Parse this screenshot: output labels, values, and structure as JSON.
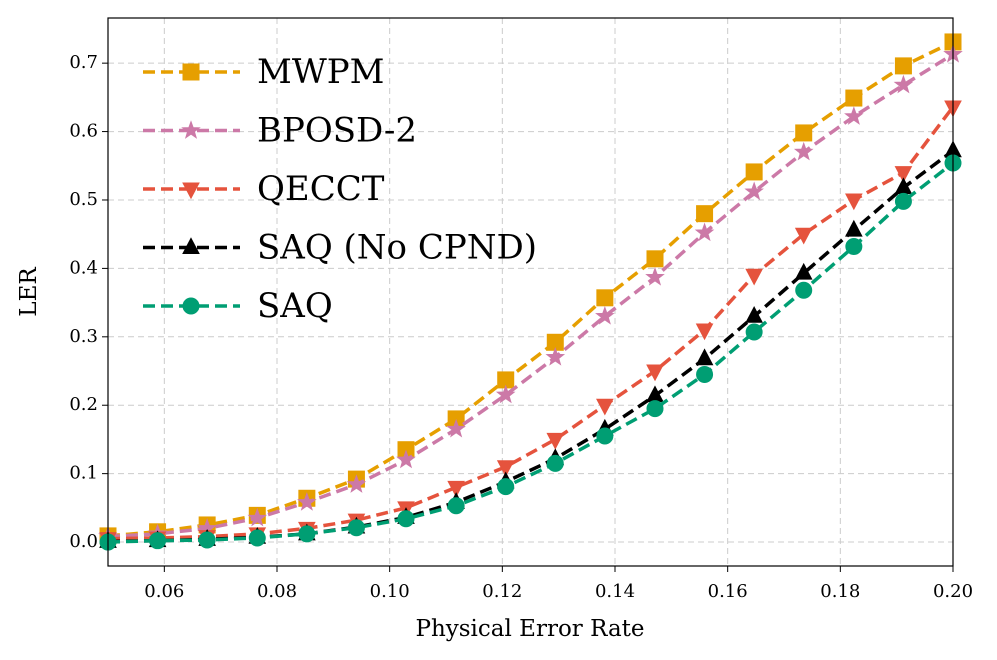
{
  "chart_data": {
    "type": "line",
    "xlabel": "Physical Error Rate",
    "ylabel": "LER",
    "x": [
      0.05,
      0.0588,
      0.0676,
      0.0765,
      0.0853,
      0.0941,
      0.1029,
      0.1118,
      0.1206,
      0.1294,
      0.1382,
      0.1471,
      0.1559,
      0.1647,
      0.1735,
      0.1824,
      0.1912,
      0.2
    ],
    "series": [
      {
        "name": "MWPM",
        "color": "#E69F00",
        "marker": "square",
        "values": [
          0.009,
          0.015,
          0.025,
          0.039,
          0.064,
          0.092,
          0.135,
          0.18,
          0.237,
          0.292,
          0.357,
          0.414,
          0.48,
          0.541,
          0.598,
          0.649,
          0.696,
          0.731
        ]
      },
      {
        "name": "BPOSD-2",
        "color": "#CC79A7",
        "marker": "star",
        "values": [
          0.008,
          0.012,
          0.02,
          0.035,
          0.058,
          0.084,
          0.12,
          0.165,
          0.215,
          0.27,
          0.33,
          0.387,
          0.452,
          0.512,
          0.57,
          0.622,
          0.668,
          0.713
        ]
      },
      {
        "name": "QECCT",
        "color": "#E5533D",
        "marker": "triangle-down",
        "values": [
          0.005,
          0.006,
          0.008,
          0.012,
          0.02,
          0.032,
          0.05,
          0.08,
          0.11,
          0.15,
          0.2,
          0.25,
          0.31,
          0.39,
          0.45,
          0.5,
          0.54,
          0.636
        ]
      },
      {
        "name": "SAQ (No CPND)",
        "color": "#000000",
        "marker": "triangle-up",
        "values": [
          0.001,
          0.002,
          0.004,
          0.007,
          0.012,
          0.022,
          0.036,
          0.058,
          0.088,
          0.122,
          0.165,
          0.214,
          0.268,
          0.33,
          0.393,
          0.456,
          0.518,
          0.572
        ]
      },
      {
        "name": "SAQ",
        "color": "#009E73",
        "marker": "circle",
        "values": [
          0.0,
          0.002,
          0.003,
          0.006,
          0.012,
          0.021,
          0.034,
          0.053,
          0.081,
          0.115,
          0.155,
          0.195,
          0.245,
          0.307,
          0.368,
          0.432,
          0.498,
          0.554
        ]
      }
    ],
    "xlim": [
      0.05,
      0.2
    ],
    "ylim": [
      -0.035,
      0.766
    ],
    "xticks": [
      0.06,
      0.08,
      {
        "value": 0.1,
        "label": "0.10"
      },
      0.12,
      0.14,
      0.16,
      0.18,
      {
        "value": 0.2,
        "label": "0.20"
      }
    ],
    "yticks": [
      {
        "value": 0,
        "label": "0.0"
      },
      0.1,
      0.2,
      0.3,
      0.4,
      0.5,
      0.6,
      0.7
    ],
    "grid": true,
    "legend": "upper left"
  }
}
